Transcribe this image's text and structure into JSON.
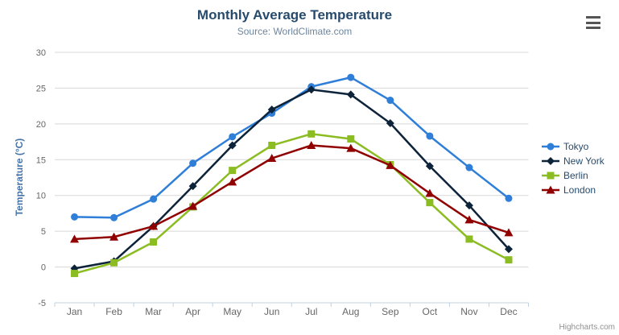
{
  "chart_data": {
    "type": "line",
    "title": "Monthly Average Temperature",
    "subtitle": "Source: WorldClimate.com",
    "xlabel": "",
    "ylabel": "Temperature (°C)",
    "categories": [
      "Jan",
      "Feb",
      "Mar",
      "Apr",
      "May",
      "Jun",
      "Jul",
      "Aug",
      "Sep",
      "Oct",
      "Nov",
      "Dec"
    ],
    "series": [
      {
        "name": "Tokyo",
        "color": "#2f7ed8",
        "marker": "circle",
        "values": [
          7.0,
          6.9,
          9.5,
          14.5,
          18.2,
          21.5,
          25.2,
          26.5,
          23.3,
          18.3,
          13.9,
          9.6
        ]
      },
      {
        "name": "New York",
        "color": "#0d233a",
        "marker": "diamond",
        "values": [
          -0.2,
          0.8,
          5.7,
          11.3,
          17.0,
          22.0,
          24.8,
          24.1,
          20.1,
          14.1,
          8.6,
          2.5
        ]
      },
      {
        "name": "Berlin",
        "color": "#8bbc21",
        "marker": "square",
        "values": [
          -0.9,
          0.6,
          3.5,
          8.4,
          13.5,
          17.0,
          18.6,
          17.9,
          14.3,
          9.0,
          3.9,
          1.0
        ]
      },
      {
        "name": "London",
        "color": "#910000",
        "marker": "triangle",
        "values": [
          3.9,
          4.2,
          5.7,
          8.5,
          11.9,
          15.2,
          17.0,
          16.6,
          14.2,
          10.3,
          6.6,
          4.8
        ]
      }
    ],
    "ylim": [
      -5,
      30
    ],
    "yticks": [
      -5,
      0,
      5,
      10,
      15,
      20,
      25,
      30
    ],
    "grid": true,
    "legend_position": "right"
  },
  "colors": {
    "grid_line": "#d8d8d8",
    "axis_line": "#c0d0e0",
    "tick_label": "#666666",
    "title": "#274b6d",
    "subtitle": "#6d869f",
    "axis_title": "#4572a7",
    "legend_text": "#274b6d"
  },
  "credit": "Highcharts.com",
  "menu": {
    "icon": "hamburger-icon"
  }
}
